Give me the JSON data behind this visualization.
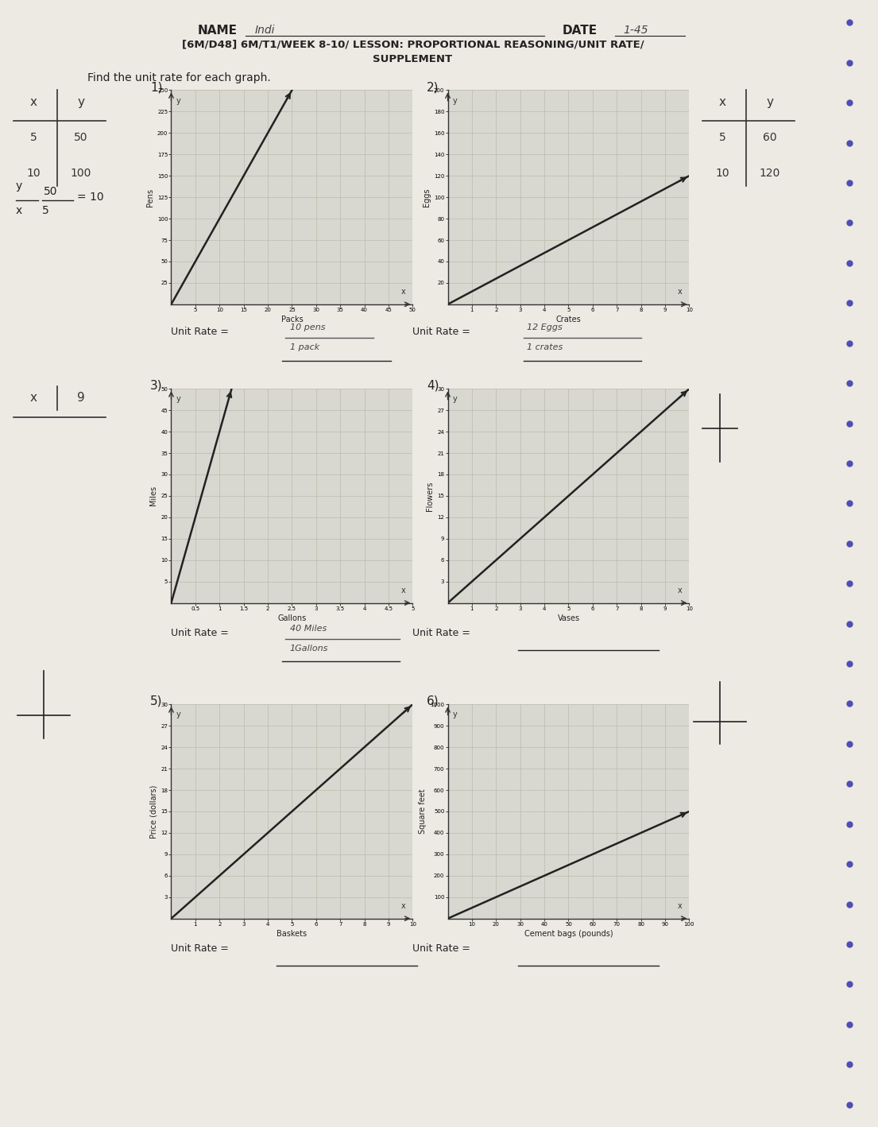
{
  "title_name": "NAME",
  "name_value": "Indi",
  "date_label": "DATE",
  "date_value": "1-45",
  "title_line1": "[6M/D48] 6M/T1/WEEK 8-10/ LESSON: PROPORTIONAL REASONING/UNIT RATE/",
  "title_line2": "SUPPLEMENT",
  "instruction": "Find the unit rate for each graph.",
  "paper_color": "#ede9e3",
  "graph_bg": "#d8d8d0",
  "grid_color": "#bbbbaa",
  "line_color": "#222222",
  "text_color": "#222222",
  "graphs": [
    {
      "number": "1)",
      "xlabel": "Packs",
      "ylabel": "Pens",
      "xlim": [
        0,
        50
      ],
      "ylim": [
        0,
        250
      ],
      "xticks": [
        5,
        10,
        15,
        20,
        25,
        30,
        35,
        40,
        45,
        50
      ],
      "xtick_labels": [
        "5",
        "10",
        "15",
        "20",
        "25",
        "30",
        "35",
        "40",
        "45",
        "50"
      ],
      "yticks": [
        25,
        50,
        75,
        100,
        125,
        150,
        175,
        200,
        225,
        250
      ],
      "ytick_labels": [
        "25",
        "50",
        "75",
        "100",
        "125",
        "150",
        "175",
        "200",
        "225",
        "250"
      ],
      "xdata": [
        0,
        25
      ],
      "ydata": [
        0,
        250
      ],
      "unit_rate_answer": "10 pens\n1 pack"
    },
    {
      "number": "2)",
      "xlabel": "Crates",
      "ylabel": "Eggs",
      "xlim": [
        0,
        10
      ],
      "ylim": [
        0,
        200
      ],
      "xticks": [
        1,
        2,
        3,
        4,
        5,
        6,
        7,
        8,
        9,
        10
      ],
      "xtick_labels": [
        "1",
        "2",
        "3",
        "4",
        "5",
        "6",
        "7",
        "8",
        "9",
        "10"
      ],
      "yticks": [
        20,
        40,
        60,
        80,
        100,
        120,
        140,
        160,
        180,
        200
      ],
      "ytick_labels": [
        "20",
        "40",
        "60",
        "80",
        "100",
        "120",
        "140",
        "160",
        "180",
        "200"
      ],
      "xdata": [
        0,
        10
      ],
      "ydata": [
        0,
        120
      ],
      "unit_rate_answer": "12 Eggs\n1 crates"
    },
    {
      "number": "3)",
      "xlabel": "Gallons",
      "ylabel": "Miles",
      "xlim": [
        0,
        5
      ],
      "ylim": [
        0,
        50
      ],
      "xticks": [
        0.5,
        1.0,
        1.5,
        2.0,
        2.5,
        3.0,
        3.5,
        4.0,
        4.5,
        5.0
      ],
      "xtick_labels": [
        "0.5",
        "1",
        "1.5",
        "2",
        "2.5",
        "3",
        "3.5",
        "4",
        "4.5",
        "5"
      ],
      "yticks": [
        5,
        10,
        15,
        20,
        25,
        30,
        35,
        40,
        45,
        50
      ],
      "ytick_labels": [
        "5",
        "10",
        "15",
        "20",
        "25",
        "30",
        "35",
        "40",
        "45",
        "50"
      ],
      "xdata": [
        0,
        1.25
      ],
      "ydata": [
        0,
        50
      ],
      "unit_rate_answer": "40 Miles\n1Gallons"
    },
    {
      "number": "4)",
      "xlabel": "Vases",
      "ylabel": "Flowers",
      "xlim": [
        0,
        10
      ],
      "ylim": [
        0,
        30
      ],
      "xticks": [
        1,
        2,
        3,
        4,
        5,
        6,
        7,
        8,
        9,
        10
      ],
      "xtick_labels": [
        "1",
        "2",
        "3",
        "4",
        "5",
        "6",
        "7",
        "8",
        "9",
        "10"
      ],
      "yticks": [
        3,
        6,
        9,
        12,
        15,
        18,
        21,
        24,
        27,
        30
      ],
      "ytick_labels": [
        "3",
        "6",
        "9",
        "12",
        "15",
        "18",
        "21",
        "24",
        "27",
        "30"
      ],
      "xdata": [
        0,
        10
      ],
      "ydata": [
        0,
        30
      ],
      "unit_rate_answer": ""
    },
    {
      "number": "5)",
      "xlabel": "Baskets",
      "ylabel": "Price (dollars)",
      "xlim": [
        0,
        10
      ],
      "ylim": [
        0,
        30
      ],
      "xticks": [
        1,
        2,
        3,
        4,
        5,
        6,
        7,
        8,
        9,
        10
      ],
      "xtick_labels": [
        "1",
        "2",
        "3",
        "4",
        "5",
        "6",
        "7",
        "8",
        "9",
        "10"
      ],
      "yticks": [
        3,
        6,
        9,
        12,
        15,
        18,
        21,
        24,
        27,
        30
      ],
      "ytick_labels": [
        "3",
        "6",
        "9",
        "12",
        "15",
        "18",
        "21",
        "24",
        "27",
        "30"
      ],
      "xdata": [
        0,
        10
      ],
      "ydata": [
        0,
        30
      ],
      "unit_rate_answer": ""
    },
    {
      "number": "6)",
      "xlabel": "Cement bags (pounds)",
      "ylabel": "Square feet",
      "xlim": [
        0,
        100
      ],
      "ylim": [
        0,
        1000
      ],
      "xticks": [
        10,
        20,
        30,
        40,
        50,
        60,
        70,
        80,
        90,
        100
      ],
      "xtick_labels": [
        "10",
        "20",
        "30",
        "40",
        "50",
        "60",
        "70",
        "80",
        "90",
        "100"
      ],
      "yticks": [
        100,
        200,
        300,
        400,
        500,
        600,
        700,
        800,
        900,
        1000
      ],
      "ytick_labels": [
        "100",
        "200",
        "300",
        "400",
        "500",
        "600",
        "700",
        "800",
        "900",
        "1000"
      ],
      "xdata": [
        0,
        100
      ],
      "ydata": [
        0,
        500
      ],
      "unit_rate_answer": ""
    }
  ],
  "table1": {
    "headers": [
      "x",
      "y"
    ],
    "rows": [
      [
        "5",
        "50"
      ],
      [
        "10",
        "100"
      ]
    ]
  },
  "table2": {
    "headers": [
      "x",
      "y"
    ],
    "rows": [
      [
        "5",
        "60"
      ],
      [
        "10",
        "120"
      ]
    ]
  },
  "table3": {
    "headers": [
      "x",
      "9"
    ],
    "rows": []
  },
  "spiral_color": "#3333aa",
  "spiral_x": 0.967,
  "spiral_count": 28
}
